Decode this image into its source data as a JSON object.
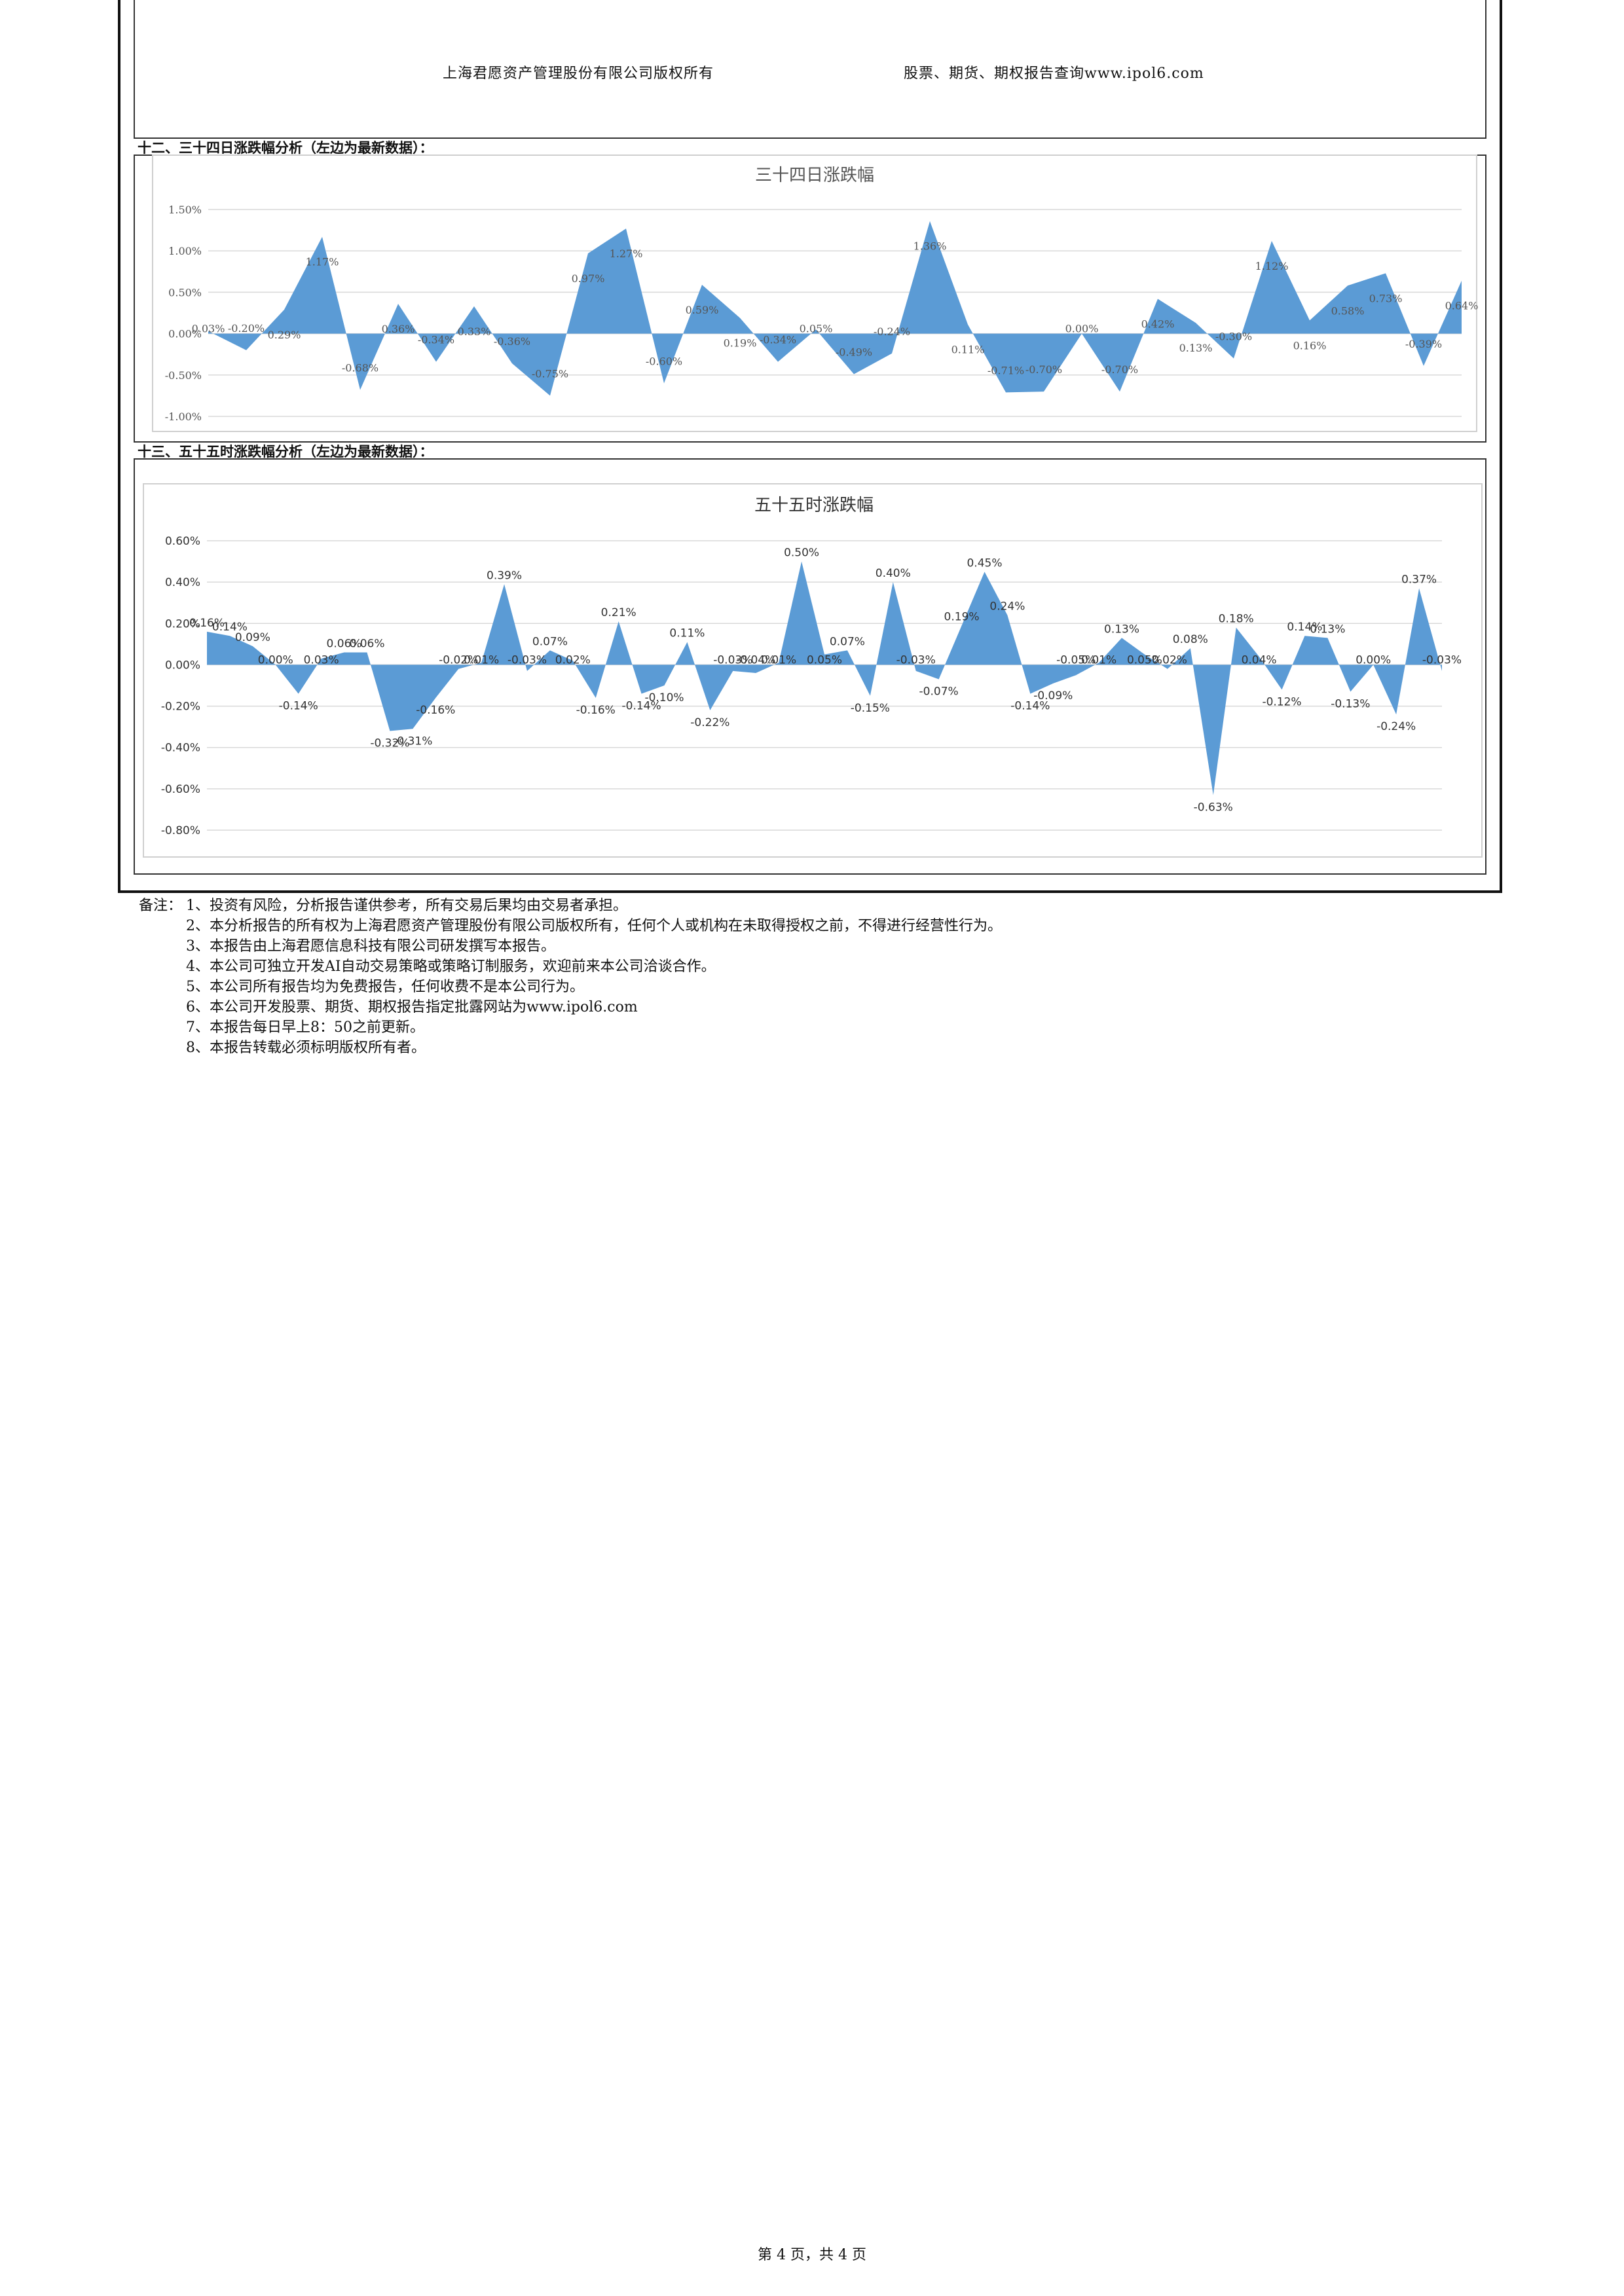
{
  "header": {
    "left": "上海君愿资产管理股份有限公司版权所有",
    "right": "股票、期货、期权报告查询www.ipol6.com"
  },
  "sections": [
    {
      "title": "十二、三十四日涨跌幅分析（左边为最新数据）："
    },
    {
      "title": "十三、五十五时涨跌幅分析（左边为最新数据）："
    }
  ],
  "chart_data": [
    {
      "type": "area",
      "title": "三十四日涨跌幅",
      "ylim": [
        -0.01,
        0.015
      ],
      "yticks": [
        "1.50%",
        "1.00%",
        "0.50%",
        "0.00%",
        "-0.50%",
        "-1.00%"
      ],
      "ytick_values": [
        0.015,
        0.01,
        0.005,
        0,
        -0.005,
        -0.01
      ],
      "grid": true,
      "color": "#5b9bd5",
      "values": [
        0.0003,
        -0.002,
        0.0029,
        0.0117,
        -0.0068,
        0.0036,
        -0.0034,
        0.0033,
        -0.0036,
        -0.0075,
        0.0097,
        0.0127,
        -0.006,
        0.0059,
        0.0019,
        -0.0034,
        0.0005,
        -0.0049,
        -0.0024,
        0.0136,
        0.0011,
        -0.0071,
        -0.007,
        0.0,
        -0.007,
        0.0042,
        0.0013,
        -0.003,
        0.0112,
        0.0016,
        0.0058,
        0.0073,
        -0.0039,
        0.0064
      ],
      "labels": [
        "0.03%",
        "-0.20%",
        "0.29%",
        "1.17%",
        "-0.68%",
        "0.36%",
        "-0.34%",
        "0.33%",
        "-0.36%",
        "-0.75%",
        "0.97%",
        "1.27%",
        "-0.60%",
        "0.59%",
        "0.19%",
        "-0.34%",
        "0.05%",
        "-0.49%",
        "-0.24%",
        "1.36%",
        "0.11%",
        "-0.71%",
        "-0.70%",
        "0.00%",
        "-0.70%",
        "0.42%",
        "0.13%",
        "-0.30%",
        "1.12%",
        "0.16%",
        "0.58%",
        "0.73%",
        "-0.39%",
        "0.64%"
      ]
    },
    {
      "type": "area",
      "title": "五十五时涨跌幅",
      "ylim": [
        -0.008,
        0.006
      ],
      "yticks": [
        "0.60%",
        "0.40%",
        "0.20%",
        "0.00%",
        "-0.20%",
        "-0.40%",
        "-0.60%",
        "-0.80%"
      ],
      "ytick_values": [
        0.006,
        0.004,
        0.002,
        0,
        -0.002,
        -0.004,
        -0.006,
        -0.008
      ],
      "grid": true,
      "color": "#5b9bd5",
      "values": [
        0.0016,
        0.0014,
        0.0009,
        0.0,
        -0.0014,
        0.0003,
        0.0006,
        0.0006,
        -0.0032,
        -0.0031,
        -0.0016,
        -0.0002,
        0.0001,
        0.0039,
        -0.0003,
        0.0007,
        0.0002,
        -0.0016,
        0.0021,
        -0.0014,
        -0.001,
        0.0011,
        -0.0022,
        -0.0003,
        -0.0004,
        0.0001,
        0.005,
        0.0005,
        0.0007,
        -0.0015,
        0.004,
        -0.0003,
        -0.0007,
        0.0019,
        0.0045,
        0.0024,
        -0.0014,
        -0.0009,
        -0.0005,
        0.0001,
        0.0013,
        0.0005,
        -0.0002,
        0.0008,
        -0.0063,
        0.0018,
        0.0004,
        -0.0012,
        0.0014,
        0.0013,
        -0.0013,
        0.0,
        -0.0024,
        0.0037,
        -0.0003
      ],
      "labels": [
        "0.16%",
        "0.14%",
        "0.09%",
        "0.00%",
        "-0.14%",
        "0.03%",
        "0.06%",
        "0.06%",
        "-0.32%",
        "-0.31%",
        "-0.16%",
        "-0.02%",
        "0.01%",
        "0.39%",
        "-0.03%",
        "0.07%",
        "0.02%",
        "-0.16%",
        "0.21%",
        "-0.14%",
        "-0.10%",
        "0.11%",
        "-0.22%",
        "-0.03%",
        "-0.04%",
        "0.01%",
        "0.50%",
        "0.05%",
        "0.07%",
        "-0.15%",
        "0.40%",
        "-0.03%",
        "-0.07%",
        "0.19%",
        "0.45%",
        "0.24%",
        "-0.14%",
        "-0.09%",
        "-0.05%",
        "0.01%",
        "0.13%",
        "0.05%",
        "-0.02%",
        "0.08%",
        "-0.63%",
        "0.18%",
        "0.04%",
        "-0.12%",
        "0.14%",
        "0.13%",
        "-0.13%",
        "0.00%",
        "-0.24%",
        "0.37%",
        "-0.03%"
      ]
    }
  ],
  "notes": {
    "label": "备注：",
    "items": [
      "1、投资有风险，分析报告谨供参考，所有交易后果均由交易者承担。",
      "2、本分析报告的所有权为上海君愿资产管理股份有限公司版权所有，任何个人或机构在未取得授权之前，不得进行经营性行为。",
      "3、本报告由上海君愿信息科技有限公司研发撰写本报告。",
      "4、本公司可独立开发AI自动交易策略或策略订制服务，欢迎前来本公司洽谈合作。",
      "5、本公司所有报告均为免费报告，任何收费不是本公司行为。",
      "6、本公司开发股票、期货、期权报告指定批露网站为www.ipol6.com",
      "7、本报告每日早上8：50之前更新。",
      "8、本报告转载必须标明版权所有者。"
    ]
  },
  "footer": {
    "text": "第 4 页，共 4 页"
  }
}
